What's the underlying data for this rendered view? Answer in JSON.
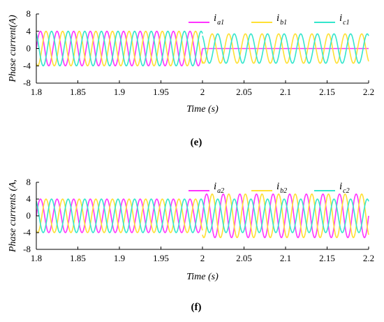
{
  "chart_data": [
    {
      "type": "line",
      "panel": "e",
      "caption": "(e)",
      "xlabel": "Time (s)",
      "ylabel": "Phase current(A)",
      "xlim": [
        1.8,
        2.2
      ],
      "ylim": [
        -8,
        8
      ],
      "xticks": [
        "1.8",
        "1.85",
        "1.9",
        "1.95",
        "2",
        "2.05",
        "2.1",
        "2.15",
        "2.2"
      ],
      "yticks": [
        "8",
        "4",
        "0",
        "-4",
        "-8"
      ],
      "grid": false,
      "legend_position": "top-right",
      "frequency_hz": 50,
      "series": [
        {
          "name": "i_a1",
          "label_main": "i",
          "label_sub": "a1",
          "color": "#ff33ff",
          "phase_deg": 0,
          "segments": [
            {
              "x": [
                1.8,
                2.0
              ],
              "amplitude": 4.0
            },
            {
              "x": [
                2.0,
                2.2
              ],
              "amplitude": 0.0
            }
          ]
        },
        {
          "name": "i_b1",
          "label_main": "i",
          "label_sub": "b1",
          "color": "#ffe033",
          "phase_deg": -120,
          "segments": [
            {
              "x": [
                1.8,
                2.0
              ],
              "amplitude": 4.0
            },
            {
              "x": [
                2.0,
                2.2
              ],
              "amplitude": 3.4
            }
          ]
        },
        {
          "name": "i_c1",
          "label_main": "i",
          "label_sub": "c1",
          "color": "#33e6cc",
          "phase_deg": 120,
          "segments": [
            {
              "x": [
                1.8,
                2.0
              ],
              "amplitude": 4.0
            },
            {
              "x": [
                2.0,
                2.2
              ],
              "amplitude": 3.4
            }
          ]
        }
      ]
    },
    {
      "type": "line",
      "panel": "f",
      "caption": "(f)",
      "xlabel": "Time (s)",
      "ylabel": "Phase currents (A,",
      "xlim": [
        1.8,
        2.2
      ],
      "ylim": [
        -8,
        8
      ],
      "xticks": [
        "1.8",
        "1.85",
        "1.9",
        "1.95",
        "2",
        "2.05",
        "2.1",
        "2.15",
        "2.2"
      ],
      "yticks": [
        "8",
        "4",
        "0",
        "-4",
        "-8"
      ],
      "grid": false,
      "legend_position": "top-right",
      "frequency_hz": 50,
      "series": [
        {
          "name": "i_a2",
          "label_main": "i",
          "label_sub": "a2",
          "color": "#ff33ff",
          "phase_deg": 0,
          "segments": [
            {
              "x": [
                1.8,
                2.0
              ],
              "amplitude": 4.0
            },
            {
              "x": [
                2.0,
                2.2
              ],
              "amplitude": 5.2
            }
          ]
        },
        {
          "name": "i_b2",
          "label_main": "i",
          "label_sub": "b2",
          "color": "#ffe033",
          "phase_deg": -120,
          "segments": [
            {
              "x": [
                1.8,
                2.0
              ],
              "amplitude": 4.0
            },
            {
              "x": [
                2.0,
                2.2
              ],
              "amplitude": 5.2
            }
          ]
        },
        {
          "name": "i_c2",
          "label_main": "i",
          "label_sub": "c2",
          "color": "#33e6cc",
          "phase_deg": 120,
          "segments": [
            {
              "x": [
                1.8,
                2.0
              ],
              "amplitude": 4.0
            },
            {
              "x": [
                2.0,
                2.2
              ],
              "amplitude": 4.0
            }
          ]
        }
      ]
    }
  ]
}
